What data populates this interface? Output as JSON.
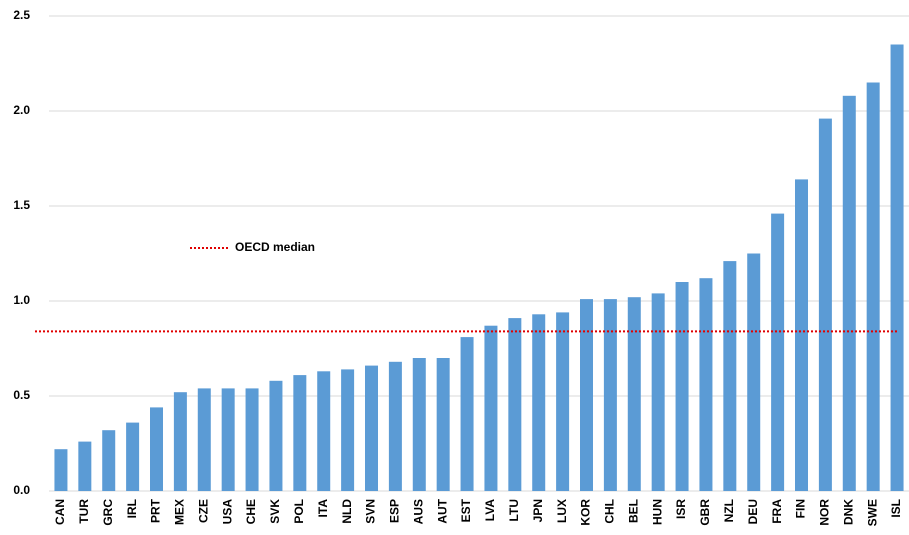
{
  "chart_data": {
    "type": "bar",
    "categories": [
      "CAN",
      "TUR",
      "GRC",
      "IRL",
      "PRT",
      "MEX",
      "CZE",
      "USA",
      "CHE",
      "SVK",
      "POL",
      "ITA",
      "NLD",
      "SVN",
      "ESP",
      "AUS",
      "AUT",
      "EST",
      "LVA",
      "LTU",
      "JPN",
      "LUX",
      "KOR",
      "CHL",
      "BEL",
      "HUN",
      "ISR",
      "GBR",
      "NZL",
      "DEU",
      "FRA",
      "FIN",
      "NOR",
      "DNK",
      "SWE",
      "ISL"
    ],
    "values": [
      0.22,
      0.26,
      0.32,
      0.36,
      0.44,
      0.52,
      0.54,
      0.54,
      0.54,
      0.58,
      0.61,
      0.63,
      0.64,
      0.66,
      0.68,
      0.7,
      0.7,
      0.81,
      0.87,
      0.91,
      0.93,
      0.94,
      1.01,
      1.01,
      1.02,
      1.04,
      1.1,
      1.12,
      1.21,
      1.25,
      1.46,
      1.64,
      1.96,
      2.08,
      2.15,
      2.35
    ],
    "color": "#5b9bd5",
    "median": {
      "name": "OECD median",
      "value": 0.84,
      "color": "#e00000"
    },
    "ylim": [
      0,
      2.5
    ],
    "yticks": [
      {
        "value": 0,
        "label": "0.0"
      },
      0.5,
      {
        "value": 1,
        "label": "1.0"
      },
      1.5,
      {
        "value": 2,
        "label": "2.0"
      },
      2.5
    ],
    "grid": true
  }
}
